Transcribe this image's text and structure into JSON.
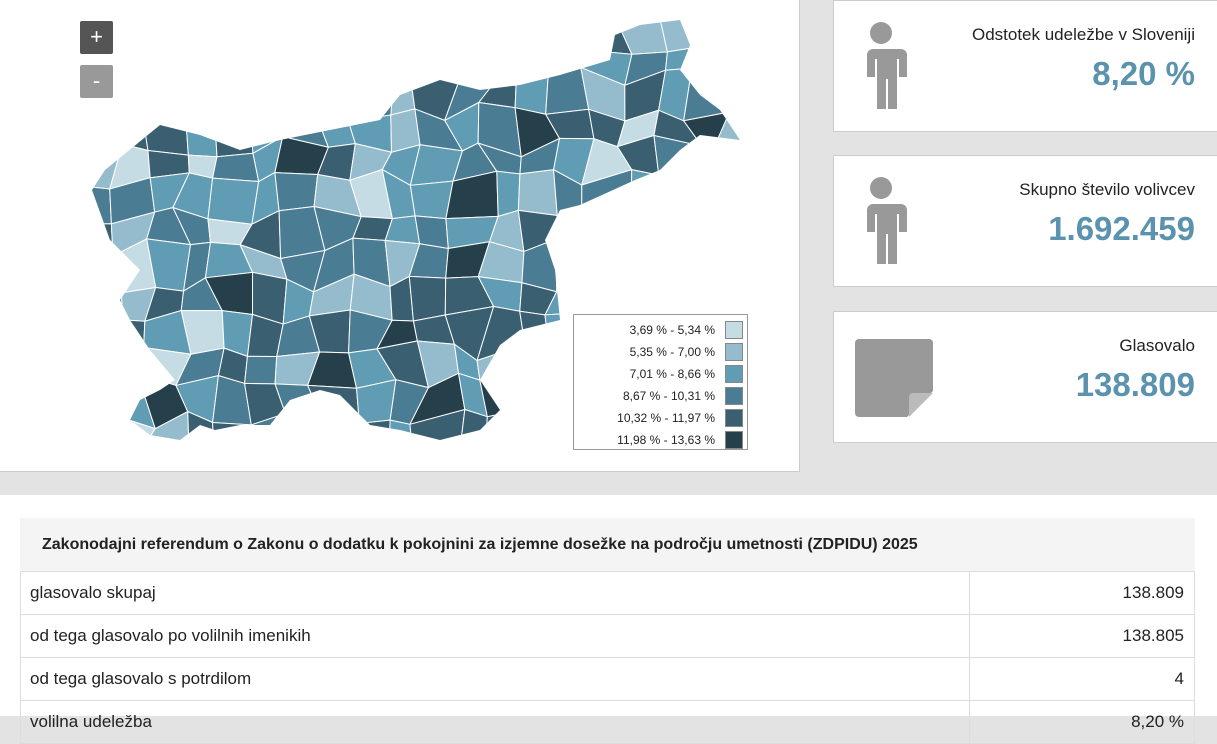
{
  "map": {
    "zoom_in": "+",
    "zoom_out": "-",
    "legend": [
      {
        "label": "3,69 % - 5,34 %",
        "color": "#c6dce4"
      },
      {
        "label": "5,35 % - 7,00 %",
        "color": "#94bccc"
      },
      {
        "label": "7,01 % - 8,66 %",
        "color": "#619cb5"
      },
      {
        "label": "8,67 % - 10,31 %",
        "color": "#4a7d93"
      },
      {
        "label": "10,32 % - 11,97 %",
        "color": "#3a5f70"
      },
      {
        "label": "11,98 % - 13,63 %",
        "color": "#26404b"
      }
    ]
  },
  "cards": [
    {
      "label": "Odstotek udeležbe v Sloveniji",
      "value": "8,20 %"
    },
    {
      "label": "Skupno število volivcev",
      "value": "1.692.459"
    },
    {
      "label": "Glasovalo",
      "value": "138.809"
    }
  ],
  "table": {
    "title": "Zakonodajni referendum o Zakonu o dodatku k pokojnini za izjemne dosežke na področju umetnosti (ZDPIDU) 2025",
    "rows": [
      [
        "glasovalo skupaj",
        "138.809"
      ],
      [
        "od tega glasovalo po volilnih imenikih",
        "138.805"
      ],
      [
        "od tega glasovalo s potrdilom",
        "4"
      ],
      [
        "volilna udeležba",
        "8,20 %"
      ]
    ]
  }
}
